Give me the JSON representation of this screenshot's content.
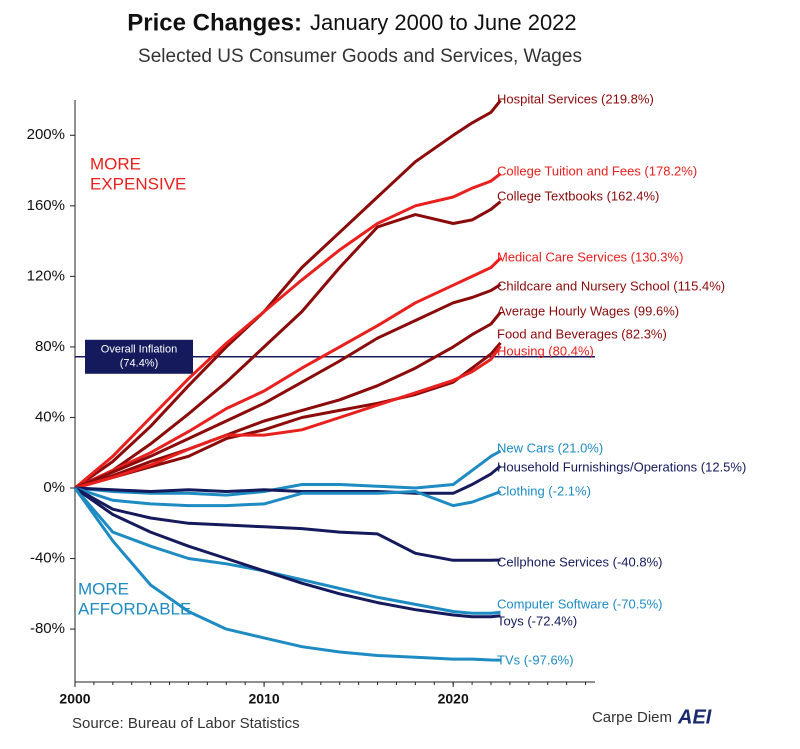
{
  "chart_data": {
    "type": "line",
    "title_bold": "Price Changes:",
    "title_rest": "January 2000 to June 2022",
    "subtitle": "Selected US Consumer Goods and Services, Wages",
    "source": "Source: Bureau of Labor Statistics",
    "brand": "Carpe Diem",
    "logo": "AEI",
    "x": [
      2000,
      2002,
      2004,
      2006,
      2008,
      2010,
      2012,
      2014,
      2016,
      2018,
      2020,
      2021,
      2022,
      2022.5
    ],
    "xlim": [
      2000,
      2027.5
    ],
    "xticks": [
      2000,
      2010,
      2020
    ],
    "ylim": [
      -110,
      220
    ],
    "yticks": [
      {
        "value": -80,
        "label": "-80%"
      },
      {
        "value": -40,
        "label": "-40%"
      },
      {
        "value": 0,
        "label": "0%"
      },
      {
        "value": 40,
        "label": "40%"
      },
      {
        "value": 80,
        "label": "80%"
      },
      {
        "value": 120,
        "label": "120%"
      },
      {
        "value": 160,
        "label": "160%"
      },
      {
        "value": 200,
        "label": "200%"
      }
    ],
    "reference_line": {
      "label": "Overall Inflation",
      "value": 74.4,
      "value_label": "(74.4%)",
      "color": "#141a5c"
    },
    "annotations": [
      {
        "lines": [
          "MORE",
          "EXPENSIVE"
        ],
        "color": "#e8201e"
      },
      {
        "lines": [
          "MORE",
          "AFFORDABLE"
        ],
        "color": "#1e8bc3"
      }
    ],
    "series": [
      {
        "name": "Hospital Services (219.8%)",
        "color": "#8b0a0a",
        "values": [
          0,
          15,
          35,
          58,
          80,
          100,
          125,
          145,
          165,
          185,
          200,
          207,
          213,
          219.8
        ]
      },
      {
        "name": "College Tuition and Fees (178.2%)",
        "color": "#e8201e",
        "values": [
          0,
          18,
          40,
          62,
          82,
          100,
          118,
          135,
          150,
          160,
          165,
          170,
          174,
          178.2
        ]
      },
      {
        "name": "College Textbooks (162.4%)",
        "color": "#8b0a0a",
        "values": [
          0,
          10,
          25,
          42,
          60,
          80,
          100,
          125,
          148,
          155,
          150,
          152,
          158,
          162.4
        ]
      },
      {
        "name": "Medical Care Services (130.3%)",
        "color": "#e8201e",
        "values": [
          0,
          10,
          20,
          32,
          45,
          55,
          68,
          80,
          92,
          105,
          115,
          120,
          125,
          130.3
        ]
      },
      {
        "name": "Childcare and Nursery School (115.4%)",
        "color": "#8b0a0a",
        "values": [
          0,
          9,
          18,
          28,
          38,
          48,
          60,
          72,
          85,
          95,
          105,
          108,
          112,
          115.4
        ]
      },
      {
        "name": "Average Hourly Wages (99.6%)",
        "color": "#8b0a0a",
        "values": [
          0,
          7,
          15,
          22,
          30,
          38,
          44,
          50,
          58,
          68,
          80,
          87,
          93,
          99.6
        ]
      },
      {
        "name": "Food and Beverages (82.3%)",
        "color": "#8b0a0a",
        "values": [
          0,
          6,
          12,
          18,
          28,
          33,
          40,
          44,
          48,
          53,
          60,
          68,
          76,
          82.3
        ]
      },
      {
        "name": "Housing (80.4%)",
        "color": "#e8201e",
        "values": [
          0,
          6,
          13,
          22,
          30,
          30,
          33,
          40,
          47,
          54,
          61,
          66,
          73,
          80.4
        ]
      },
      {
        "name": "New Cars (21.0%)",
        "color": "#1e8bc3",
        "values": [
          0,
          -2,
          -3,
          -3,
          -4,
          -2,
          2,
          2,
          1,
          0,
          2,
          10,
          18,
          21.0
        ]
      },
      {
        "name": "Household Furnishings/Operations (12.5%)",
        "color": "#141a5c",
        "values": [
          0,
          -1,
          -2,
          -1,
          -2,
          -1,
          -2,
          -2,
          -2,
          -3,
          -3,
          2,
          8,
          12.5
        ]
      },
      {
        "name": "Clothing (-2.1%)",
        "color": "#1e8bc3",
        "values": [
          0,
          -7,
          -9,
          -10,
          -10,
          -9,
          -3,
          -3,
          -3,
          -2,
          -10,
          -8,
          -4,
          -2.1
        ]
      },
      {
        "name": "Cellphone Services (-40.8%)",
        "color": "#141a5c",
        "values": [
          0,
          -12,
          -17,
          -20,
          -21,
          -22,
          -23,
          -25,
          -26,
          -37,
          -41,
          -41,
          -41,
          -40.8
        ]
      },
      {
        "name": "Computer Software (-70.5%)",
        "color": "#1e8bc3",
        "values": [
          0,
          -25,
          -33,
          -40,
          -43,
          -47,
          -52,
          -57,
          -62,
          -66,
          -70,
          -71,
          -71,
          -70.5
        ]
      },
      {
        "name": "Toys (-72.4%)",
        "color": "#141a5c",
        "values": [
          0,
          -15,
          -25,
          -33,
          -40,
          -47,
          -54,
          -60,
          -65,
          -69,
          -72,
          -73,
          -73,
          -72.4
        ]
      },
      {
        "name": "TVs (-97.6%)",
        "color": "#1e8bc3",
        "values": [
          0,
          -30,
          -55,
          -70,
          -80,
          -85,
          -90,
          -93,
          -95,
          -96,
          -97,
          -97,
          -97.5,
          -97.6
        ]
      }
    ]
  }
}
